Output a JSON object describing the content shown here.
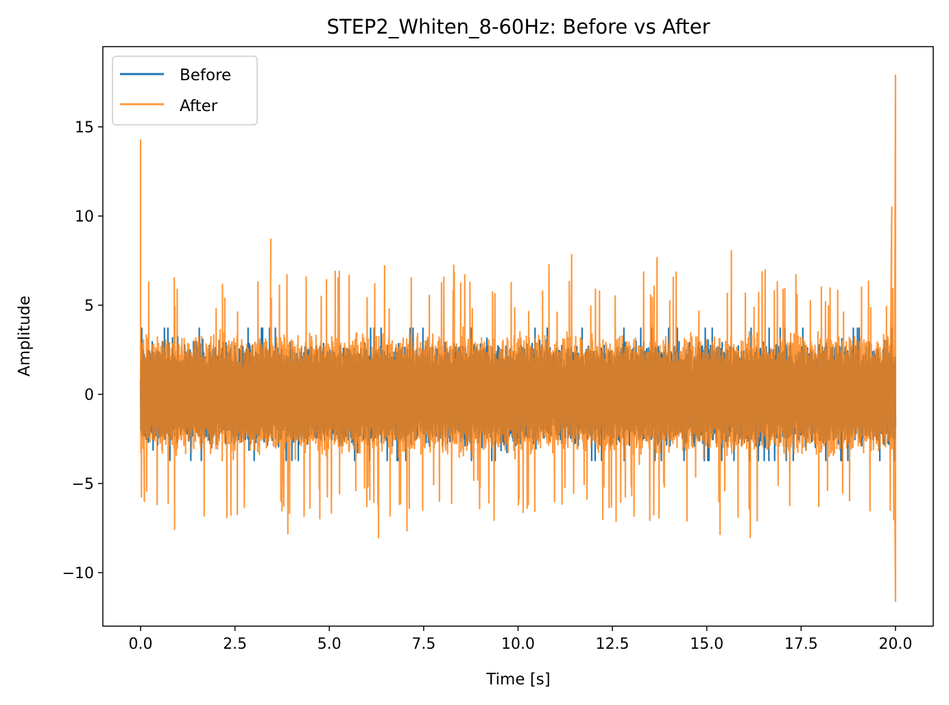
{
  "chart_data": {
    "type": "line",
    "title": "STEP2_Whiten_8-60Hz: Before vs After",
    "xlabel": "Time [s]",
    "ylabel": "Amplitude",
    "xlim": [
      -1.0,
      21.0
    ],
    "ylim": [
      -13.0,
      19.5
    ],
    "xticks": [
      0.0,
      2.5,
      5.0,
      7.5,
      10.0,
      12.5,
      15.0,
      17.5,
      20.0
    ],
    "xtick_labels": [
      "0.0",
      "2.5",
      "5.0",
      "7.5",
      "10.0",
      "12.5",
      "15.0",
      "17.5",
      "20.0"
    ],
    "yticks": [
      -10,
      -5,
      0,
      5,
      10,
      15
    ],
    "ytick_labels": [
      "−10",
      "−5",
      "0",
      "5",
      "10",
      "15"
    ],
    "legend_position": "top-left",
    "duration_s": 20.0,
    "series": [
      {
        "name": "Before",
        "color": "#1f77b4",
        "typical_range": [
          -2.5,
          2.8
        ],
        "approx_min": -3.8,
        "approx_max": 4.1
      },
      {
        "name": "After",
        "color": "#ff7f0e",
        "opacity": 0.8,
        "typical_range": [
          -3.0,
          3.2
        ],
        "approx_min": -11.6,
        "approx_max": 17.9,
        "notable_peaks": [
          {
            "t": 0.0,
            "value": 14.3
          },
          {
            "t": 0.1,
            "value": -6.0
          },
          {
            "t": 3.45,
            "value": 8.7
          },
          {
            "t": 20.0,
            "value": 17.9
          },
          {
            "t": 20.0,
            "value": -11.6
          },
          {
            "t": 19.9,
            "value": 10.5
          }
        ]
      }
    ]
  }
}
